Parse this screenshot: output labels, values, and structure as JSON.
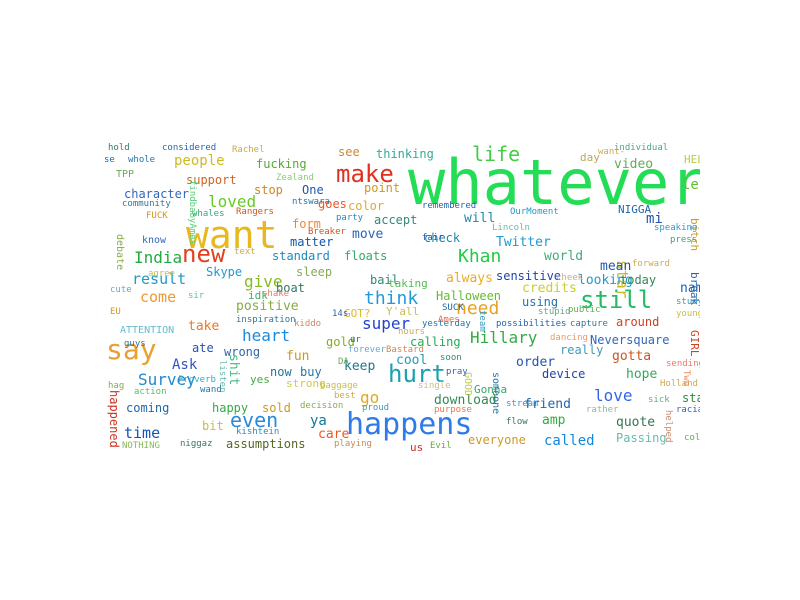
{
  "words": [
    {
      "text": "whatever",
      "color": "#22dd55"
    },
    {
      "text": "want",
      "color": "#e8b820"
    },
    {
      "text": "happens",
      "color": "#2f7ce8"
    },
    {
      "text": "say",
      "color": "#e8a030"
    },
    {
      "text": "new",
      "color": "#e04020"
    },
    {
      "text": "make",
      "color": "#e03020"
    },
    {
      "text": "hurt",
      "color": "#1aa0b0"
    },
    {
      "text": "still",
      "color": "#22bb66"
    },
    {
      "text": "life",
      "color": "#44cc44"
    },
    {
      "text": "loved",
      "color": "#66cc22"
    },
    {
      "text": "Khan",
      "color": "#22cc44"
    },
    {
      "text": "need",
      "color": "#e8a020"
    },
    {
      "text": "even",
      "color": "#2a8ad8"
    },
    {
      "text": "heart",
      "color": "#1a8ae0"
    },
    {
      "text": "think",
      "color": "#2299dd"
    },
    {
      "text": "super",
      "color": "#2244cc"
    },
    {
      "text": "Survey",
      "color": "#2288cc"
    },
    {
      "text": "India",
      "color": "#22aa44"
    },
    {
      "text": "result",
      "color": "#2299cc"
    },
    {
      "text": "come",
      "color": "#ee9933"
    },
    {
      "text": "give",
      "color": "#88bb22"
    },
    {
      "text": "people",
      "color": "#ccbb22"
    },
    {
      "text": "star",
      "color": "#ccbb22"
    },
    {
      "text": "Hillary",
      "color": "#33aa44"
    },
    {
      "text": "time",
      "color": "#1155bb"
    },
    {
      "text": "love",
      "color": "#3366ee"
    },
    {
      "text": "go",
      "color": "#ddaa22"
    },
    {
      "text": "world",
      "color": "#44aa77"
    },
    {
      "text": "mi",
      "color": "#2255aa"
    },
    {
      "text": "let",
      "color": "#66bb33"
    },
    {
      "text": "video",
      "color": "#66aa55"
    },
    {
      "text": "mean",
      "color": "#2255aa"
    },
    {
      "text": "name",
      "color": "#1166bb"
    },
    {
      "text": "credits",
      "color": "#cccc33"
    },
    {
      "text": "looking",
      "color": "#2299cc"
    },
    {
      "text": "called",
      "color": "#1188dd"
    },
    {
      "text": "Ask",
      "color": "#3355bb"
    },
    {
      "text": "character",
      "color": "#3366bb"
    },
    {
      "text": "positive",
      "color": "#88aa44"
    },
    {
      "text": "fun",
      "color": "#cc9922"
    },
    {
      "text": "keep",
      "color": "#227788"
    },
    {
      "text": "ya",
      "color": "#117799"
    },
    {
      "text": "cool",
      "color": "#2299bb"
    },
    {
      "text": "order",
      "color": "#2255bb"
    },
    {
      "text": "gotta",
      "color": "#cc5522"
    },
    {
      "text": "hope",
      "color": "#33aa55"
    },
    {
      "text": "quote",
      "color": "#337755"
    },
    {
      "text": "amp",
      "color": "#33aa44"
    },
    {
      "text": "friend",
      "color": "#2266aa"
    },
    {
      "text": "care",
      "color": "#ee5522"
    },
    {
      "text": "download",
      "color": "#338855"
    },
    {
      "text": "Twitter",
      "color": "#2299cc"
    },
    {
      "text": "always",
      "color": "#eeaa22"
    },
    {
      "text": "will",
      "color": "#2288aa"
    },
    {
      "text": "check",
      "color": "#2288aa"
    },
    {
      "text": "move",
      "color": "#2266bb"
    },
    {
      "text": "floats",
      "color": "#33aa66"
    },
    {
      "text": "bail",
      "color": "#338877"
    },
    {
      "text": "sensitive",
      "color": "#2244aa"
    },
    {
      "text": "using",
      "color": "#2277aa"
    },
    {
      "text": "really",
      "color": "#4499bb"
    },
    {
      "text": "device",
      "color": "#2244aa"
    },
    {
      "text": "Neversquare",
      "color": "#3366bb"
    },
    {
      "text": "around",
      "color": "#cc4422"
    },
    {
      "text": "today",
      "color": "#338855"
    },
    {
      "text": "stay",
      "color": "#338844"
    },
    {
      "text": "Passing",
      "color": "#66bbaa"
    },
    {
      "text": "everyone",
      "color": "#cc9922"
    },
    {
      "text": "assumptions",
      "color": "#556622"
    },
    {
      "text": "sold",
      "color": "#cc9922"
    },
    {
      "text": "strong",
      "color": "#cccc44"
    },
    {
      "text": "buy",
      "color": "#2277aa"
    },
    {
      "text": "now",
      "color": "#227799"
    },
    {
      "text": "shit",
      "color": "#44bb88"
    },
    {
      "text": "happy",
      "color": "#33aa44"
    },
    {
      "text": "coming",
      "color": "#2266aa"
    },
    {
      "text": "bit",
      "color": "#ccbb44"
    },
    {
      "text": "happened",
      "color": "#cc3322"
    },
    {
      "text": "wrong",
      "color": "#3366aa"
    },
    {
      "text": "yes",
      "color": "#44aa44"
    },
    {
      "text": "ate",
      "color": "#2255aa"
    },
    {
      "text": "take",
      "color": "#ee7722"
    },
    {
      "text": "Skype",
      "color": "#2299cc"
    },
    {
      "text": "idk",
      "color": "#44aa66"
    },
    {
      "text": "boat",
      "color": "#337766"
    },
    {
      "text": "sleep",
      "color": "#88aa55"
    },
    {
      "text": "standard",
      "color": "#2288bb"
    },
    {
      "text": "form",
      "color": "#ee8833"
    },
    {
      "text": "matter",
      "color": "#1155aa"
    },
    {
      "text": "goes",
      "color": "#ee5522"
    },
    {
      "text": "One",
      "color": "#2255aa"
    },
    {
      "text": "stop",
      "color": "#cc8822"
    },
    {
      "text": "fucking",
      "color": "#55aa33"
    },
    {
      "text": "support",
      "color": "#cc6622"
    },
    {
      "text": "see",
      "color": "#cc8833"
    },
    {
      "text": "thinking",
      "color": "#33aa99"
    },
    {
      "text": "point",
      "color": "#cc9922"
    },
    {
      "text": "color",
      "color": "#ddaa33"
    },
    {
      "text": "accept",
      "color": "#338877"
    },
    {
      "text": "taking",
      "color": "#55bb55"
    },
    {
      "text": "gold",
      "color": "#88aa22"
    },
    {
      "text": "calling",
      "color": "#22aa55"
    },
    {
      "text": "GOT?",
      "color": "#ddbb22"
    },
    {
      "text": "Y'all",
      "color": "#ccbb55"
    },
    {
      "text": "Halloween",
      "color": "#66bb33"
    },
    {
      "text": "Gonna",
      "color": "#33aa66"
    },
    {
      "text": "GOOD",
      "color": "#bbcc44"
    },
    {
      "text": "someone",
      "color": "#2277aa"
    },
    {
      "text": "us",
      "color": "#cc3322"
    },
    {
      "text": "day",
      "color": "#bbaa55"
    },
    {
      "text": "HELL",
      "color": "#bbcc44"
    },
    {
      "text": "NIGGA",
      "color": "#2266aa"
    },
    {
      "text": "bitch",
      "color": "#cc9922"
    },
    {
      "text": "break",
      "color": "#3366aa"
    },
    {
      "text": "GIRL",
      "color": "#cc4422"
    },
    {
      "text": "hold",
      "color": "#337766"
    },
    {
      "text": "considered",
      "color": "#2266aa"
    },
    {
      "text": "Rachel",
      "color": "#ccaa44"
    },
    {
      "text": "individual",
      "color": "#44aa88"
    },
    {
      "text": "whole",
      "color": "#2277aa"
    },
    {
      "text": "TPP",
      "color": "#66aa55"
    },
    {
      "text": "community",
      "color": "#337799"
    },
    {
      "text": "FUCK",
      "color": "#cc9922"
    },
    {
      "text": "whales",
      "color": "#33aa77"
    },
    {
      "text": "Rangers",
      "color": "#cc5522"
    },
    {
      "text": "Zealand",
      "color": "#88cc77"
    },
    {
      "text": "ntswara",
      "color": "#2277aa"
    },
    {
      "text": "remembered",
      "color": "#2266aa"
    },
    {
      "text": "OurMoment",
      "color": "#2299cc"
    },
    {
      "text": "party",
      "color": "#2288bb"
    },
    {
      "text": "Breaker",
      "color": "#cc5522"
    },
    {
      "text": "Lincoln",
      "color": "#66bbaa"
    },
    {
      "text": "fair",
      "color": "#2255aa"
    },
    {
      "text": "know",
      "color": "#3366bb"
    },
    {
      "text": "debate",
      "color": "#88aa44"
    },
    {
      "text": "findbabyAmes",
      "color": "#55cc77"
    },
    {
      "text": "cute",
      "color": "#66aacc"
    },
    {
      "text": "EU",
      "color": "#cc9922"
    },
    {
      "text": "agree",
      "color": "#ccbb44"
    },
    {
      "text": "ATTENTION",
      "color": "#66bbcc"
    },
    {
      "text": "inspiration",
      "color": "#337799"
    },
    {
      "text": "shake",
      "color": "#ee7755"
    },
    {
      "text": "sir",
      "color": "#66bbaa"
    },
    {
      "text": "guys",
      "color": "#2277aa"
    },
    {
      "text": "listen",
      "color": "#66bbaa"
    },
    {
      "text": "Proverb",
      "color": "#33aacc"
    },
    {
      "text": "action",
      "color": "#55bb66"
    },
    {
      "text": "NOTHING",
      "color": "#88bb55"
    },
    {
      "text": "niggaz",
      "color": "#337766"
    },
    {
      "text": "kishtein",
      "color": "#3388bb"
    },
    {
      "text": "playing",
      "color": "#cc8855"
    },
    {
      "text": "baggage",
      "color": "#ccbb44"
    },
    {
      "text": "decision",
      "color": "#88aa55"
    },
    {
      "text": "proud",
      "color": "#4499bb"
    },
    {
      "text": "purpose",
      "color": "#ee7744"
    },
    {
      "text": "Evil",
      "color": "#66aa44"
    },
    {
      "text": "flow",
      "color": "#337766"
    },
    {
      "text": "stream",
      "color": "#3399cc"
    },
    {
      "text": "single",
      "color": "#ccbb88"
    },
    {
      "text": "pray",
      "color": "#3366aa"
    },
    {
      "text": "soon",
      "color": "#338877"
    },
    {
      "text": "forever",
      "color": "#66aacc"
    },
    {
      "text": "Bastard",
      "color": "#cc8855"
    },
    {
      "text": "yesterday",
      "color": "#2277aa"
    },
    {
      "text": "possibilities",
      "color": "#2266aa"
    },
    {
      "text": "stupid",
      "color": "#66aa88"
    },
    {
      "text": "public",
      "color": "#66aa55"
    },
    {
      "text": "capture",
      "color": "#337799"
    },
    {
      "text": "dancing",
      "color": "#ee9966"
    },
    {
      "text": "sending",
      "color": "#ee7766"
    },
    {
      "text": "Holland",
      "color": "#ccaa55"
    },
    {
      "text": "rather",
      "color": "#88bbaa"
    },
    {
      "text": "racial",
      "color": "#3366aa"
    },
    {
      "text": "helped",
      "color": "#cc8866"
    },
    {
      "text": "colla",
      "color": "#66aa55"
    },
    {
      "text": "studying",
      "color": "#3399bb"
    },
    {
      "text": "young",
      "color": "#ccbb44"
    },
    {
      "text": "speaking",
      "color": "#3399cc"
    },
    {
      "text": "press",
      "color": "#33aa66"
    },
    {
      "text": "forward",
      "color": "#ccaa55"
    },
    {
      "text": "want-",
      "color": "#ccaa55"
    },
    {
      "text": "hours",
      "color": "#ccaa55"
    },
    {
      "text": "DA",
      "color": "#66aa55"
    },
    {
      "text": "ur",
      "color": "#2266aa"
    },
    {
      "text": "best",
      "color": "#ccaa55"
    },
    {
      "text": "kiddo",
      "color": "#cc8866"
    },
    {
      "text": "14s",
      "color": "#3366aa"
    },
    {
      "text": "SUCK",
      "color": "#2266aa"
    },
    {
      "text": "Ames",
      "color": "#ee6644"
    },
    {
      "text": "team",
      "color": "#3399bb"
    },
    {
      "text": "cheek",
      "color": "#ccaa88"
    },
    {
      "text": "hag",
      "color": "#88aa55"
    },
    {
      "text": "sick",
      "color": "#66aa88"
    },
    {
      "text": "Two",
      "color": "#ee8855"
    },
    {
      "text": "text",
      "color": "#ccaa55"
    },
    {
      "text": "wand",
      "color": "#2277aa"
    },
    {
      "text": "se",
      "color": "#2266aa"
    }
  ]
}
